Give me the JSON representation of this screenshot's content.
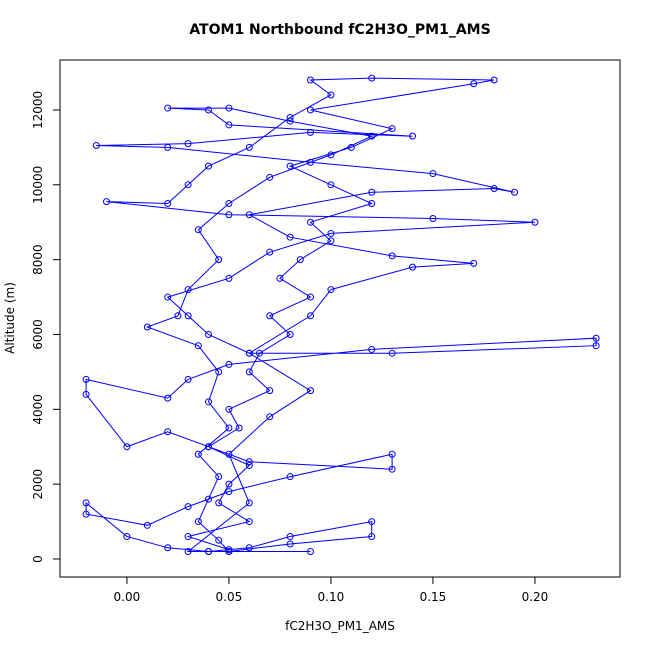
{
  "chart_data": {
    "type": "line",
    "title": "ATOM1 Northbound fC2H3O_PM1_AMS",
    "x_label": "fC2H3O_PM1_AMS",
    "y_label": "Altitude (m)",
    "xlim": [
      -0.0328,
      0.2417
    ],
    "ylim": [
      -481,
      13335
    ],
    "xticks": [
      {
        "value": 0,
        "label": "0.00"
      },
      0.05,
      {
        "value": 0.1,
        "label": "0.10"
      },
      0.15,
      {
        "value": 0.2,
        "label": "0.20"
      }
    ],
    "yticks": [
      0,
      2000,
      4000,
      6000,
      8000,
      10000,
      12000
    ],
    "series": [
      {
        "color": "#0000ff",
        "x": [
          0.04,
          0.05,
          0.03,
          0.06,
          0.045,
          0.05,
          0.06,
          0.04,
          0.055,
          0.05,
          0.07,
          0.06,
          0.065,
          0.08,
          0.07,
          0.09,
          0.075,
          0.085,
          0.1,
          0.09,
          0.12,
          0.1,
          0.08,
          0.11,
          0.13,
          0.09,
          0.17,
          0.18,
          0.12,
          0.09,
          0.1,
          0.08,
          0.06,
          0.04,
          0.03,
          0.02,
          -0.01,
          0.05,
          0.15,
          0.2,
          0.1,
          0.07,
          0.05,
          0.02,
          0.03,
          0.04,
          0.06,
          0.13,
          0.23,
          0.23,
          0.12,
          0.05,
          0.03,
          0.02,
          -0.02,
          -0.02,
          0.0,
          0.02,
          0.04,
          0.06,
          0.13,
          0.13,
          0.08,
          0.05,
          0.03,
          0.01,
          -0.02,
          -0.02,
          0.0,
          0.02,
          0.04,
          0.06,
          0.08,
          0.12,
          0.12,
          0.08,
          0.05,
          0.03,
          0.06,
          0.05,
          0.07,
          0.09,
          0.06,
          0.09,
          0.1,
          0.14,
          0.17,
          0.13,
          0.08,
          0.06,
          0.12,
          0.18,
          0.19,
          0.15,
          0.09,
          0.02,
          -0.015,
          0.03,
          0.09,
          0.14,
          0.05,
          0.04,
          0.02,
          0.05,
          0.08,
          0.12,
          0.1,
          0.07,
          0.05,
          0.035,
          0.045,
          0.03,
          0.025,
          0.01,
          0.035,
          0.045,
          0.04,
          0.05,
          0.035,
          0.045,
          0.04,
          0.035,
          0.045,
          0.05,
          0.09
        ],
        "values": [
          200,
          250,
          600,
          1000,
          1500,
          2000,
          2500,
          3000,
          3500,
          4000,
          4500,
          5000,
          5500,
          6000,
          6500,
          7000,
          7500,
          8000,
          8500,
          9000,
          9500,
          10000,
          10500,
          11000,
          11500,
          12000,
          12700,
          12800,
          12850,
          12800,
          12400,
          11800,
          11000,
          10500,
          10000,
          9500,
          9550,
          9200,
          9100,
          9000,
          8700,
          8200,
          7500,
          7000,
          6500,
          6000,
          5500,
          5500,
          5700,
          5900,
          5600,
          5200,
          4800,
          4300,
          4800,
          4400,
          3000,
          3400,
          3000,
          2600,
          2400,
          2800,
          2200,
          1800,
          1400,
          900,
          1200,
          1500,
          600,
          300,
          200,
          300,
          600,
          1000,
          600,
          400,
          200,
          200,
          1500,
          2800,
          3800,
          4500,
          5500,
          6500,
          7200,
          7800,
          7900,
          8100,
          8600,
          9200,
          9800,
          9900,
          9800,
          10300,
          10600,
          11000,
          11050,
          11100,
          11400,
          11300,
          11600,
          12000,
          12050,
          12050,
          11700,
          11300,
          10800,
          10200,
          9500,
          8800,
          8000,
          7200,
          6500,
          6200,
          5700,
          5000,
          4200,
          3500,
          2800,
          2200,
          1600,
          1000,
          500,
          200,
          200
        ]
      }
    ]
  }
}
